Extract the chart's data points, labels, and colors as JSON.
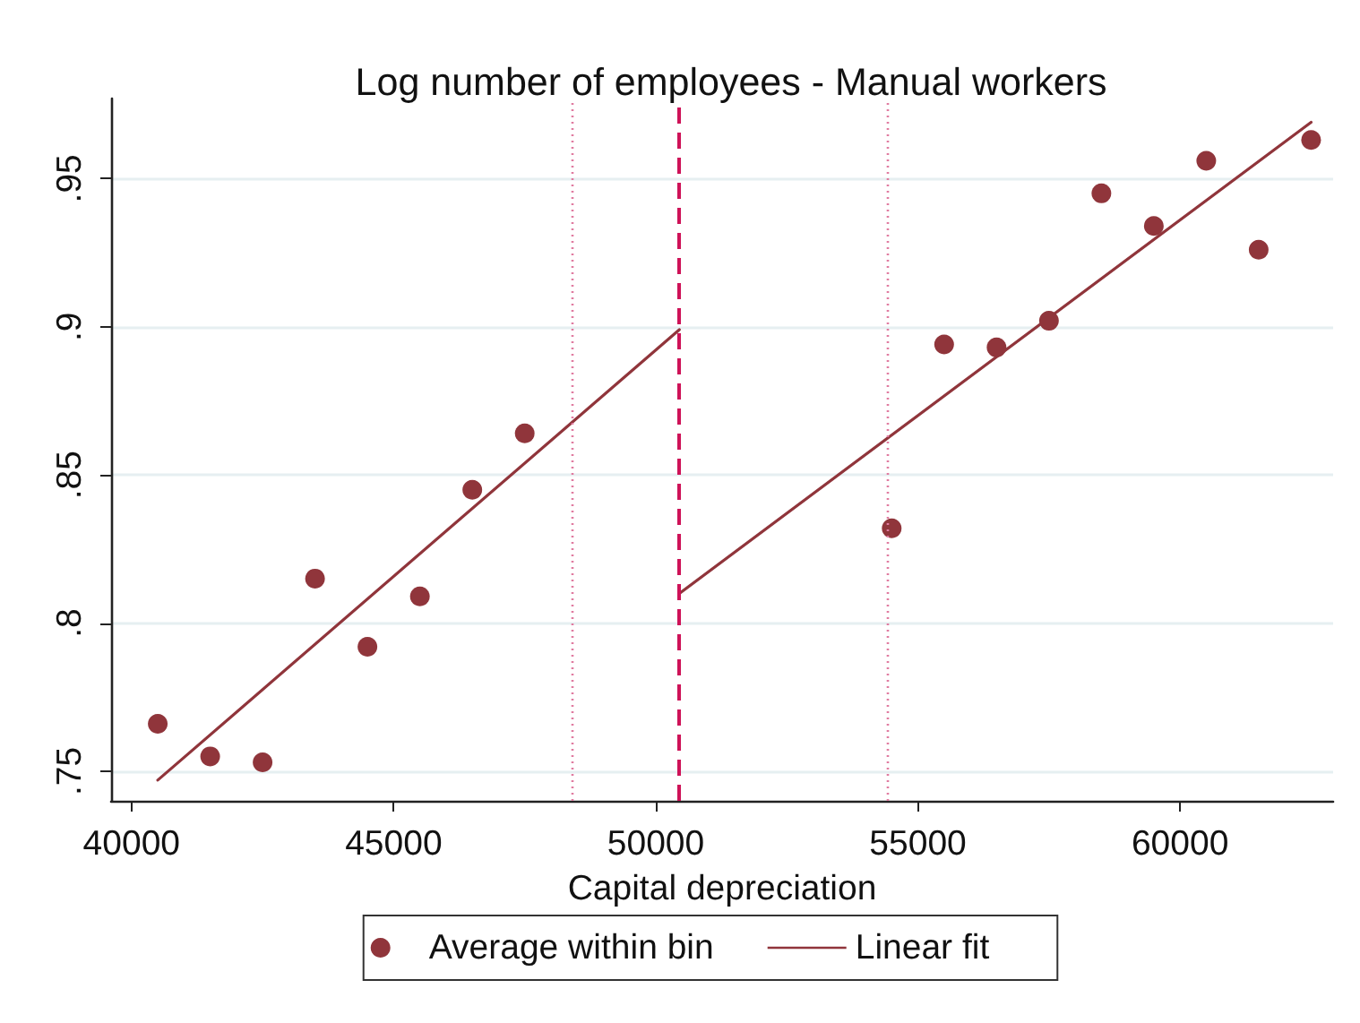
{
  "chart_data": {
    "type": "scatter",
    "title": "Log number of employees - Manual workers",
    "xlabel": "Capital depreciation",
    "xlim": [
      39610,
      62920
    ],
    "xticks": [
      40000,
      45000,
      50000,
      55000,
      60000
    ],
    "ylim": [
      0.74,
      0.977
    ],
    "yticks": [
      {
        "value": 0.75,
        "label": ".75"
      },
      {
        "value": 0.8,
        "label": ".8"
      },
      {
        "value": 0.85,
        "label": ".85"
      },
      {
        "value": 0.9,
        "label": ".9"
      },
      {
        "value": 0.95,
        "label": ".95"
      }
    ],
    "grid": "y",
    "legend": "bottom",
    "series": [
      {
        "name": "Average within bin",
        "marker": "circle",
        "color": "#90353b",
        "x": [
          40500,
          41500,
          42500,
          43500,
          44500,
          45500,
          46500,
          47500,
          54500,
          55500,
          56500,
          57500,
          58500,
          59500,
          60500,
          61500,
          62500
        ],
        "values": [
          0.766,
          0.755,
          0.753,
          0.815,
          0.792,
          0.809,
          0.845,
          0.864,
          0.832,
          0.894,
          0.893,
          0.902,
          0.945,
          0.934,
          0.956,
          0.926,
          0.963
        ]
      },
      {
        "name": "Linear fit",
        "type": "line",
        "marker": "none",
        "line_style": "solid",
        "color": "#90353b",
        "x": [
          40500,
          50450
        ],
        "values": [
          0.747,
          0.899
        ]
      },
      {
        "type": "line",
        "marker": "none",
        "line_style": "solid",
        "color": "#90353b",
        "x": [
          50450,
          62500
        ],
        "values": [
          0.81,
          0.969
        ]
      }
    ],
    "ref_lines": [
      {
        "axis": "x",
        "value": 48400,
        "color": "#e07ba0",
        "line_style": "dotted"
      },
      {
        "axis": "x",
        "value": 50450,
        "color": "#ce1258",
        "line_style": "dashed"
      },
      {
        "axis": "x",
        "value": 54430,
        "color": "#e07ba0",
        "line_style": "dotted"
      }
    ]
  }
}
